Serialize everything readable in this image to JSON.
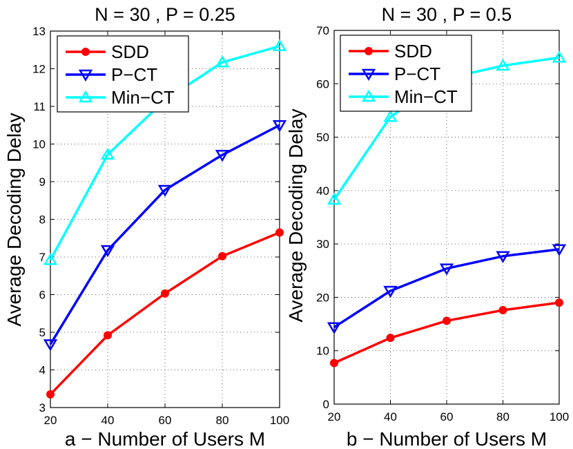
{
  "chart_data": [
    {
      "type": "line",
      "title": "N = 30 , P = 0.25",
      "xlabel": "a − Number of Users M",
      "ylabel": "Average Decoding Delay",
      "x": [
        20,
        40,
        60,
        80,
        100
      ],
      "xlim": [
        20,
        100
      ],
      "ylim": [
        3,
        13
      ],
      "xticks": [
        "20",
        "40",
        "60",
        "80",
        "100"
      ],
      "yticks": [
        "3",
        "4",
        "5",
        "6",
        "7",
        "8",
        "9",
        "10",
        "11",
        "12",
        "13"
      ],
      "grid": true,
      "legend": "top-left",
      "series": [
        {
          "name": "SDD",
          "values": [
            3.35,
            4.92,
            6.03,
            7.02,
            7.65
          ],
          "color": "#ff0000",
          "marker": "circle"
        },
        {
          "name": "P−CT",
          "values": [
            4.68,
            7.18,
            8.78,
            9.71,
            10.5
          ],
          "color": "#0000ff",
          "marker": "triangle-down"
        },
        {
          "name": "Min−CT",
          "values": [
            6.92,
            9.72,
            11.17,
            12.17,
            12.6
          ],
          "color": "#00ffff",
          "marker": "triangle-up"
        }
      ]
    },
    {
      "type": "line",
      "title": "N = 30 , P = 0.5",
      "xlabel": "b − Number of Users M",
      "ylabel": "Average Decoding Delay",
      "x": [
        20,
        40,
        60,
        80,
        100
      ],
      "xlim": [
        20,
        100
      ],
      "ylim": [
        0,
        70
      ],
      "xticks": [
        "20",
        "40",
        "60",
        "80",
        "100"
      ],
      "yticks": [
        "0",
        "10",
        "20",
        "30",
        "40",
        "50",
        "60",
        "70"
      ],
      "grid": true,
      "legend": "top-left",
      "series": [
        {
          "name": "SDD",
          "values": [
            7.7,
            12.4,
            15.6,
            17.6,
            19.0
          ],
          "color": "#ff0000",
          "marker": "circle"
        },
        {
          "name": "P−CT",
          "values": [
            14.4,
            21.2,
            25.4,
            27.7,
            29.0
          ],
          "color": "#0000ff",
          "marker": "triangle-down"
        },
        {
          "name": "Min−CT",
          "values": [
            38.3,
            53.8,
            61.0,
            63.4,
            64.9
          ],
          "color": "#00ffff",
          "marker": "triangle-up"
        }
      ]
    }
  ]
}
